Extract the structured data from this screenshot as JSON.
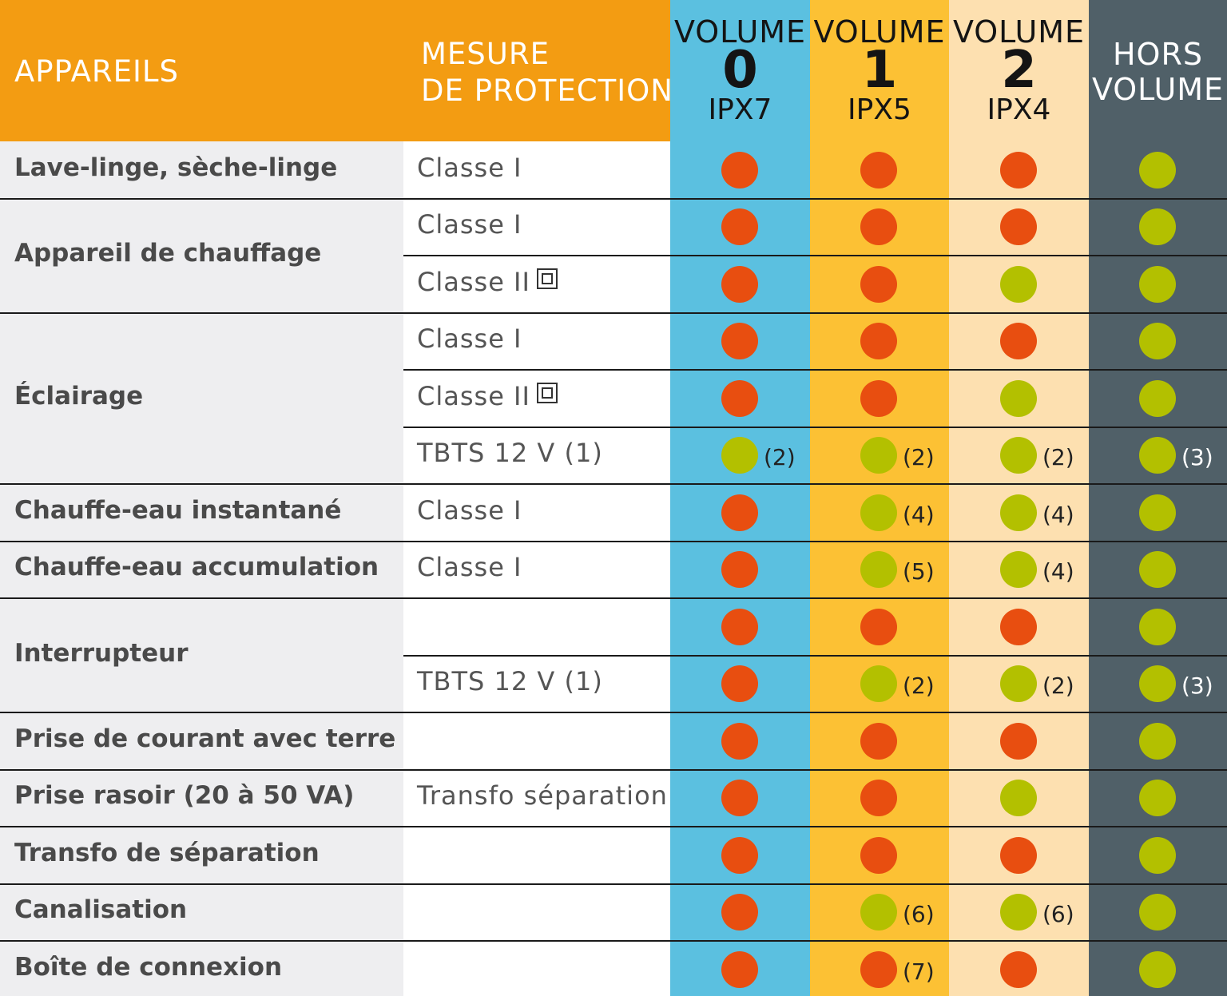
{
  "colors": {
    "header_orange": "#f39c12",
    "vol0": "#5bc0e0",
    "vol1": "#fcc134",
    "vol2": "#fde0b0",
    "hors": "#506068",
    "name_bg": "#eeeef0",
    "red": "#e84e10",
    "green": "#b3c000"
  },
  "header": {
    "appareils": "APPAREILS",
    "mesure_l1": "MESURE",
    "mesure_l2": "DE PROTECTION",
    "volumes": [
      {
        "l1": "VOLUME",
        "l2": "0",
        "l3": "IPX7"
      },
      {
        "l1": "VOLUME",
        "l2": "1",
        "l3": "IPX5"
      },
      {
        "l1": "VOLUME",
        "l2": "2",
        "l3": "IPX4"
      }
    ],
    "hors_l1": "HORS",
    "hors_l2": "VOLUME"
  },
  "groups": [
    {
      "name": "Lave-linge, sèche-linge",
      "start": 0,
      "span": 1
    },
    {
      "name": "Appareil de chauffage",
      "start": 1,
      "span": 2
    },
    {
      "name": "Éclairage",
      "start": 3,
      "span": 3
    },
    {
      "name": "Chauffe-eau instantané",
      "start": 6,
      "span": 1
    },
    {
      "name": "Chauffe-eau accumulation",
      "start": 7,
      "span": 1
    },
    {
      "name": "Interrupteur",
      "start": 8,
      "span": 2
    },
    {
      "name": "Prise de courant avec terre",
      "start": 10,
      "span": 1
    },
    {
      "name": "Prise rasoir (20 à 50 VA)",
      "start": 11,
      "span": 1
    },
    {
      "name": "Transfo de séparation",
      "start": 12,
      "span": 1
    },
    {
      "name": "Canalisation",
      "start": 13,
      "span": 1
    },
    {
      "name": "Boîte de connexion",
      "start": 14,
      "span": 1
    }
  ],
  "rows": [
    {
      "protection": "Classe I",
      "class2": false,
      "cells": [
        {
          "status": "red",
          "note": ""
        },
        {
          "status": "red",
          "note": ""
        },
        {
          "status": "red",
          "note": ""
        },
        {
          "status": "green",
          "note": ""
        }
      ]
    },
    {
      "protection": "Classe I",
      "class2": false,
      "cells": [
        {
          "status": "red",
          "note": ""
        },
        {
          "status": "red",
          "note": ""
        },
        {
          "status": "red",
          "note": ""
        },
        {
          "status": "green",
          "note": ""
        }
      ]
    },
    {
      "protection": "Classe II",
      "class2": true,
      "cells": [
        {
          "status": "red",
          "note": ""
        },
        {
          "status": "red",
          "note": ""
        },
        {
          "status": "green",
          "note": ""
        },
        {
          "status": "green",
          "note": ""
        }
      ]
    },
    {
      "protection": "Classe I",
      "class2": false,
      "cells": [
        {
          "status": "red",
          "note": ""
        },
        {
          "status": "red",
          "note": ""
        },
        {
          "status": "red",
          "note": ""
        },
        {
          "status": "green",
          "note": ""
        }
      ]
    },
    {
      "protection": "Classe II",
      "class2": true,
      "cells": [
        {
          "status": "red",
          "note": ""
        },
        {
          "status": "red",
          "note": ""
        },
        {
          "status": "green",
          "note": ""
        },
        {
          "status": "green",
          "note": ""
        }
      ]
    },
    {
      "protection": "TBTS 12 V (1)",
      "class2": false,
      "cells": [
        {
          "status": "green",
          "note": "(2)"
        },
        {
          "status": "green",
          "note": "(2)"
        },
        {
          "status": "green",
          "note": "(2)"
        },
        {
          "status": "green",
          "note": "(3)"
        }
      ]
    },
    {
      "protection": "Classe I",
      "class2": false,
      "cells": [
        {
          "status": "red",
          "note": ""
        },
        {
          "status": "green",
          "note": "(4)"
        },
        {
          "status": "green",
          "note": "(4)"
        },
        {
          "status": "green",
          "note": ""
        }
      ]
    },
    {
      "protection": "Classe I",
      "class2": false,
      "cells": [
        {
          "status": "red",
          "note": ""
        },
        {
          "status": "green",
          "note": "(5)"
        },
        {
          "status": "green",
          "note": "(4)"
        },
        {
          "status": "green",
          "note": ""
        }
      ]
    },
    {
      "protection": "",
      "class2": false,
      "cells": [
        {
          "status": "red",
          "note": ""
        },
        {
          "status": "red",
          "note": ""
        },
        {
          "status": "red",
          "note": ""
        },
        {
          "status": "green",
          "note": ""
        }
      ]
    },
    {
      "protection": "TBTS 12 V (1)",
      "class2": false,
      "cells": [
        {
          "status": "red",
          "note": ""
        },
        {
          "status": "green",
          "note": "(2)"
        },
        {
          "status": "green",
          "note": "(2)"
        },
        {
          "status": "green",
          "note": "(3)"
        }
      ]
    },
    {
      "protection": "",
      "class2": false,
      "cells": [
        {
          "status": "red",
          "note": ""
        },
        {
          "status": "red",
          "note": ""
        },
        {
          "status": "red",
          "note": ""
        },
        {
          "status": "green",
          "note": ""
        }
      ]
    },
    {
      "protection": "Transfo séparation",
      "class2": false,
      "cells": [
        {
          "status": "red",
          "note": ""
        },
        {
          "status": "red",
          "note": ""
        },
        {
          "status": "green",
          "note": ""
        },
        {
          "status": "green",
          "note": ""
        }
      ]
    },
    {
      "protection": "",
      "class2": false,
      "cells": [
        {
          "status": "red",
          "note": ""
        },
        {
          "status": "red",
          "note": ""
        },
        {
          "status": "red",
          "note": ""
        },
        {
          "status": "green",
          "note": ""
        }
      ]
    },
    {
      "protection": "",
      "class2": false,
      "cells": [
        {
          "status": "red",
          "note": ""
        },
        {
          "status": "green",
          "note": "(6)"
        },
        {
          "status": "green",
          "note": "(6)"
        },
        {
          "status": "green",
          "note": ""
        }
      ]
    },
    {
      "protection": "",
      "class2": false,
      "cells": [
        {
          "status": "red",
          "note": ""
        },
        {
          "status": "red",
          "note": "(7)"
        },
        {
          "status": "red",
          "note": ""
        },
        {
          "status": "green",
          "note": ""
        }
      ]
    }
  ]
}
